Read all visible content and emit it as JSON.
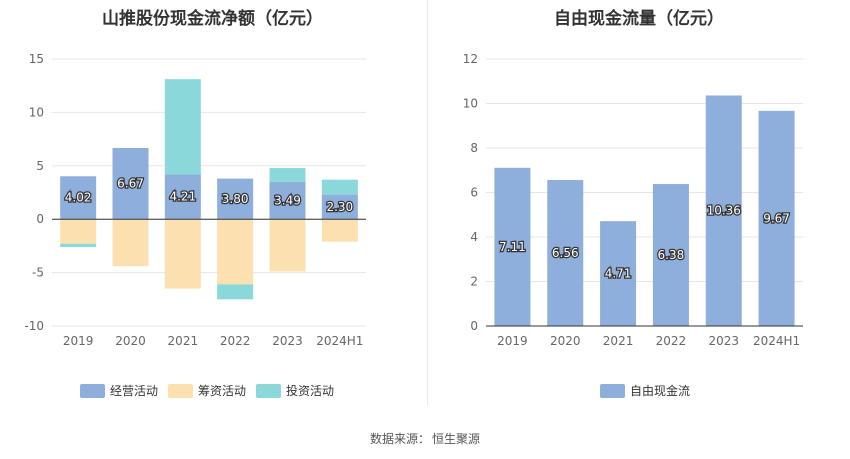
{
  "charts_titles": {
    "left": "山推股份现金流净额（亿元）",
    "right": "自由现金流量（亿元）"
  },
  "source": {
    "label": "数据来源：",
    "value": "恒生聚源"
  },
  "colors": {
    "operating": "#8eaedc",
    "financing": "#fde0b0",
    "investing": "#8ad8da",
    "free_cash_flow": "#8eaedc",
    "axis": "#333333",
    "grid": "#e6e6e6",
    "tick_text": "#666666"
  },
  "chart_data": [
    {
      "type": "bar",
      "stacked": true,
      "title": "山推股份现金流净额（亿元）",
      "categories": [
        "2019",
        "2020",
        "2021",
        "2022",
        "2023",
        "2024H1"
      ],
      "ylim": [
        -10,
        15
      ],
      "yticks": [
        15,
        10,
        5,
        0,
        -5,
        -10
      ],
      "grid": true,
      "legend_position": "bottom",
      "series": [
        {
          "name": "经营活动",
          "values": [
            4.02,
            6.67,
            4.21,
            3.8,
            3.49,
            2.3
          ],
          "labels": [
            "4.02",
            "6.67",
            "4.21",
            "3.80",
            "3.49",
            "2.30"
          ]
        },
        {
          "name": "筹资活动",
          "values": [
            -2.3,
            -4.4,
            -6.5,
            -6.1,
            -4.9,
            -2.1
          ]
        },
        {
          "name": "投资活动",
          "values": [
            -0.3,
            0.0,
            8.9,
            -1.4,
            1.3,
            1.4
          ]
        }
      ]
    },
    {
      "type": "bar",
      "title": "自由现金流量（亿元）",
      "categories": [
        "2019",
        "2020",
        "2021",
        "2022",
        "2023",
        "2024H1"
      ],
      "ylim": [
        0,
        12
      ],
      "yticks": [
        12,
        10,
        8,
        6,
        4,
        2,
        0
      ],
      "grid": true,
      "legend_position": "bottom",
      "series": [
        {
          "name": "自由现金流",
          "values": [
            7.11,
            6.56,
            4.71,
            6.38,
            10.36,
            9.67
          ],
          "labels": [
            "7.11",
            "6.56",
            "4.71",
            "6.38",
            "10.36",
            "9.67"
          ]
        }
      ]
    }
  ]
}
